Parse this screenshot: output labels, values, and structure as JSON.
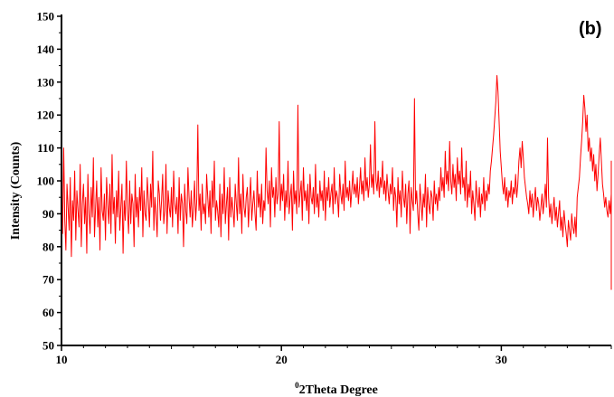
{
  "chart_data": {
    "type": "line",
    "panel_label": "(b)",
    "xlabel_sup": "0",
    "xlabel": "2Theta Degree",
    "ylabel": "Intensity (Counts)",
    "xlim": [
      10,
      35
    ],
    "ylim": [
      50,
      150
    ],
    "x_ticks": [
      10,
      20,
      30
    ],
    "x_tick_labels": [
      "10",
      "20",
      "30"
    ],
    "y_ticks": [
      50,
      60,
      70,
      80,
      90,
      100,
      110,
      120,
      130,
      140,
      150
    ],
    "y_tick_labels": [
      "50",
      "60",
      "70",
      "80",
      "90",
      "100",
      "110",
      "120",
      "130",
      "140",
      "150"
    ],
    "series": [
      {
        "color": "#ff0000",
        "x_start": 10,
        "x_step": 0.05,
        "values": [
          96,
          84,
          110,
          88,
          79,
          99,
          92,
          85,
          101,
          77,
          94,
          88,
          103,
          82,
          97,
          91,
          86,
          105,
          80,
          93,
          99,
          87,
          95,
          78,
          102,
          90,
          84,
          98,
          89,
          107,
          83,
          92,
          100,
          86,
          95,
          79,
          104,
          91,
          88,
          96,
          82,
          101,
          93,
          87,
          99,
          84,
          108,
          90,
          95,
          81,
          97,
          89,
          103,
          85,
          92,
          99,
          78,
          94,
          88,
          106,
          91,
          84,
          100,
          87,
          96,
          93,
          80,
          102,
          89,
          95,
          86,
          98,
          91,
          104,
          83,
          97,
          90,
          88,
          101,
          94,
          86,
          99,
          92,
          109,
          85,
          95,
          90,
          83,
          100,
          96,
          88,
          94,
          102,
          87,
          91,
          105,
          84,
          97,
          92,
          89,
          98,
          86,
          103,
          93,
          90,
          95,
          84,
          101,
          88,
          96,
          93,
          80,
          99,
          91,
          87,
          104,
          95,
          89,
          97,
          86,
          92,
          100,
          88,
          94,
          117,
          91,
          96,
          85,
          99,
          90,
          93,
          87,
          102,
          95,
          89,
          97,
          84,
          100,
          92,
          106,
          88,
          94,
          91,
          86,
          99,
          83,
          96,
          90,
          104,
          87,
          93,
          98,
          82,
          101,
          89,
          95,
          91,
          86,
          99,
          93,
          88,
          107,
          90,
          96,
          84,
          102,
          92,
          89,
          95,
          98,
          86,
          94,
          101,
          88,
          93,
          97,
          90,
          85,
          103,
          92,
          96,
          89,
          99,
          87,
          94,
          91,
          110,
          97,
          93,
          100,
          86,
          104,
          95,
          98,
          89,
          101,
          93,
          96,
          118,
          91,
          99,
          94,
          102,
          88,
          97,
          92,
          106,
          90,
          95,
          99,
          85,
          103,
          93,
          97,
          90,
          123,
          92,
          96,
          100,
          88,
          104,
          94,
          97,
          91,
          99,
          87,
          102,
          95,
          93,
          98,
          90,
          105,
          92,
          96,
          89,
          100,
          94,
          97,
          91,
          103,
          88,
          98,
          94,
          101,
          92,
          96,
          99,
          90,
          104,
          93,
          97,
          95,
          89,
          102,
          96,
          93,
          99,
          91,
          106,
          95,
          98,
          94,
          100,
          92,
          97,
          103,
          96,
          99,
          95,
          101,
          93,
          98,
          104,
          96,
          100,
          94,
          107,
          97,
          101,
          95,
          99,
          111,
          98,
          102,
          96,
          118,
          100,
          97,
          103,
          95,
          101,
          98,
          106,
          96,
          100,
          94,
          102,
          97,
          93,
          99,
          96,
          104,
          91,
          98,
          95,
          86,
          101,
          93,
          97,
          89,
          103,
          95,
          92,
          99,
          87,
          96,
          100,
          84,
          98,
          94,
          91,
          125,
          93,
          97,
          90,
          85,
          99,
          94,
          88,
          96,
          92,
          102,
          86,
          98,
          93,
          90,
          97,
          95,
          88,
          100,
          93,
          96,
          91,
          98,
          94,
          104,
          97,
          101,
          95,
          109,
          99,
          103,
          97,
          112,
          100,
          96,
          105,
          98,
          102,
          94,
          107,
          99,
          103,
          96,
          110,
          98,
          101,
          94,
          106,
          92,
          99,
          95,
          103,
          90,
          97,
          93,
          88,
          100,
          95,
          92,
          98,
          89,
          96,
          93,
          101,
          91,
          97,
          94,
          99,
          96,
          103,
          106,
          110,
          114,
          119,
          124,
          132,
          127,
          118,
          109,
          104,
          99,
          96,
          101,
          94,
          98,
          92,
          97,
          95,
          100,
          93,
          98,
          96,
          102,
          95,
          99,
          106,
          110,
          104,
          112,
          107,
          101,
          98,
          95,
          93,
          90,
          97,
          92,
          96,
          89,
          94,
          98,
          91,
          95,
          93,
          88,
          92,
          96,
          90,
          94,
          99,
          92,
          113,
          95,
          89,
          93,
          87,
          91,
          95,
          88,
          92,
          86,
          90,
          94,
          85,
          89,
          83,
          91,
          87,
          84,
          80,
          88,
          85,
          82,
          90,
          86,
          84,
          89,
          83,
          95,
          98,
          101,
          107,
          112,
          118,
          126,
          122,
          115,
          120,
          109,
          113,
          106,
          110,
          103,
          108,
          100,
          105,
          97,
          102,
          108,
          113,
          106,
          99,
          96,
          92,
          95,
          91,
          89,
          94,
          90,
          96,
          92,
          98,
          93,
          88,
          91,
          87,
          94,
          89,
          92,
          86,
          90,
          95,
          84,
          88,
          93,
          86,
          90,
          84,
          88,
          83,
          87,
          91,
          85,
          89,
          83,
          86,
          81,
          85,
          88,
          82,
          86,
          79,
          84,
          81,
          85,
          78,
          83,
          80,
          87,
          79,
          84,
          106,
          81,
          86,
          83,
          80,
          85,
          77,
          82,
          88,
          79,
          84,
          81,
          76,
          83,
          86,
          78,
          82,
          75,
          80,
          84,
          77,
          81,
          74,
          79,
          70,
          82,
          76,
          80,
          72,
          78,
          67,
          74,
          81,
          76,
          69,
          84,
          78,
          72,
          80,
          75,
          86,
          79,
          83,
          77,
          81
        ]
      }
    ]
  }
}
